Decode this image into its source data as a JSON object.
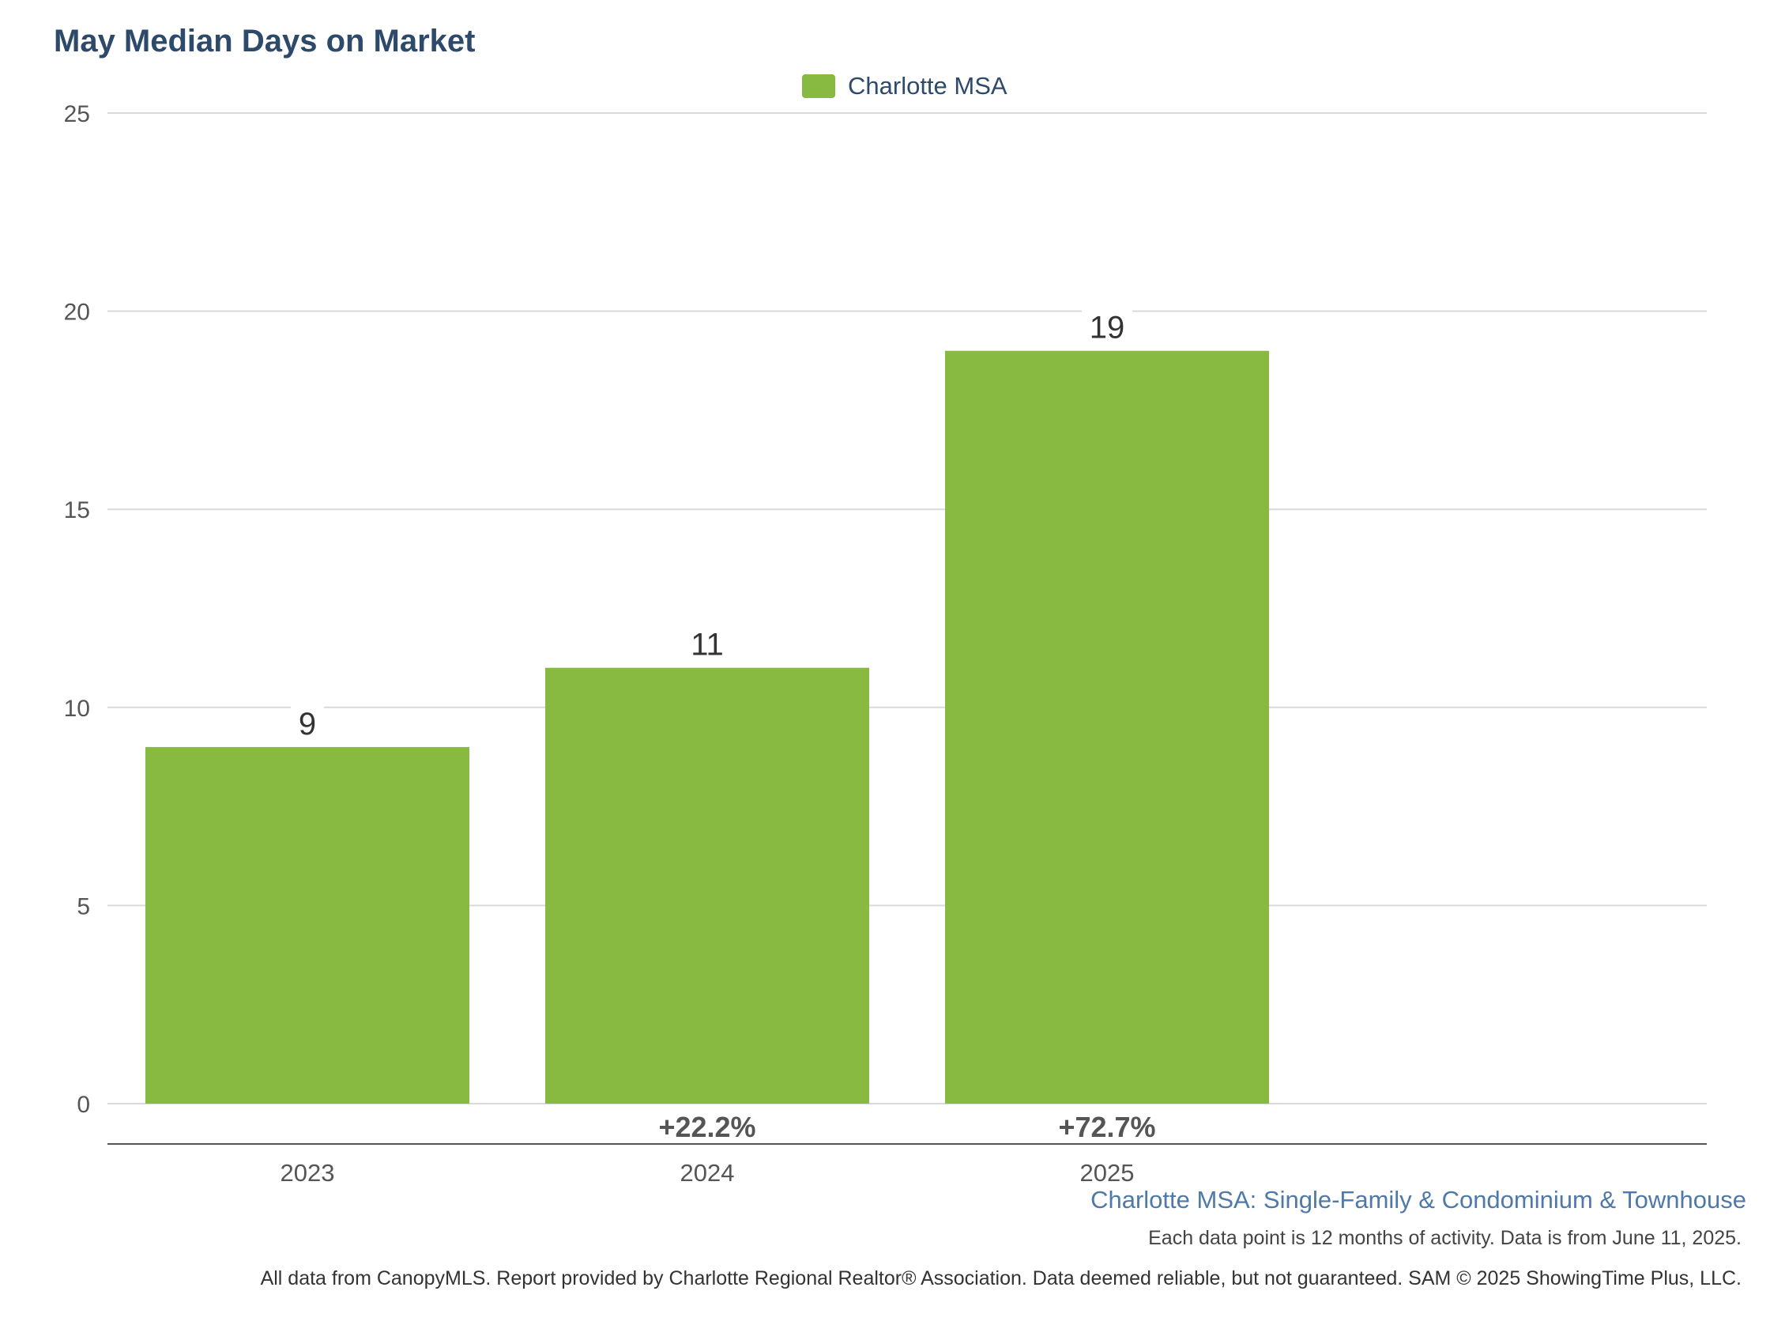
{
  "chart_data": {
    "type": "bar",
    "title": "May Median Days on Market",
    "categories": [
      "2023",
      "2024",
      "2025"
    ],
    "series": [
      {
        "name": "Charlotte MSA",
        "values": [
          9,
          11,
          19
        ],
        "color": "#88b941"
      }
    ],
    "data_labels": [
      "9",
      "11",
      "19"
    ],
    "change_labels": [
      "",
      "+22.2%",
      "+72.7%"
    ],
    "ylim": [
      0,
      25
    ],
    "yticks": [
      0,
      5,
      10,
      15,
      20,
      25
    ],
    "grid": true,
    "legend": "top-center",
    "xlabel": "",
    "ylabel": ""
  },
  "footer": {
    "subtitle": "Charlotte MSA: Single-Family & Condominium & Townhouse",
    "note": "Each data point is 12 months of activity. Data is from June 11, 2025.",
    "disclaimer": "All data from CanopyMLS. Report provided by Charlotte Regional Realtor® Association. Data deemed reliable, but not guaranteed. SAM © 2025 ShowingTime Plus, LLC."
  },
  "colors": {
    "title": "#2d4a6b",
    "bar": "#88b941",
    "grid": "#d9d9d9",
    "axis": "#555555",
    "subtitle": "#4f79a8"
  }
}
